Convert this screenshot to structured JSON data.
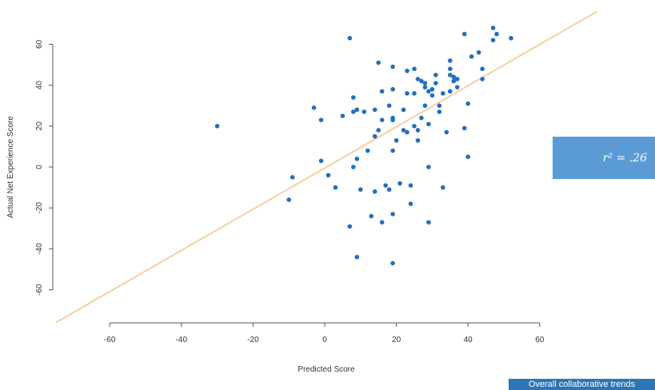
{
  "chart_data": {
    "type": "scatter",
    "title": "",
    "xlabel": "Predicted Score",
    "ylabel": "Actual Net Experience Score",
    "xlim": [
      -60,
      60
    ],
    "ylim": [
      -60,
      60
    ],
    "x_ticks": [
      "-60",
      "-40",
      "-20",
      "0",
      "20",
      "40",
      "60"
    ],
    "y_ticks": [
      "-60",
      "-40",
      "-20",
      "0",
      "20",
      "40",
      "60"
    ],
    "grid": false,
    "point_color": "#1f6fbf",
    "trend_color": "#f5cfa0",
    "trend_line": [
      [
        -75,
        -76
      ],
      [
        76,
        76
      ]
    ],
    "points": [
      [
        -30,
        20
      ],
      [
        -10,
        -16
      ],
      [
        -9,
        -5
      ],
      [
        -3,
        29
      ],
      [
        -1,
        23
      ],
      [
        -1,
        3
      ],
      [
        1,
        -4
      ],
      [
        3,
        -10
      ],
      [
        5,
        25
      ],
      [
        7,
        63
      ],
      [
        7,
        -29
      ],
      [
        8,
        27
      ],
      [
        8,
        34
      ],
      [
        8,
        0
      ],
      [
        9,
        4
      ],
      [
        9,
        28
      ],
      [
        9,
        -44
      ],
      [
        10,
        -11
      ],
      [
        11,
        27
      ],
      [
        12,
        8
      ],
      [
        13,
        -24
      ],
      [
        14,
        15
      ],
      [
        14,
        28
      ],
      [
        14,
        -12
      ],
      [
        15,
        18
      ],
      [
        15,
        51
      ],
      [
        16,
        23
      ],
      [
        16,
        37
      ],
      [
        16,
        -27
      ],
      [
        17,
        -9
      ],
      [
        18,
        -11
      ],
      [
        18,
        30
      ],
      [
        19,
        8
      ],
      [
        19,
        23
      ],
      [
        19,
        24
      ],
      [
        19,
        38
      ],
      [
        19,
        49
      ],
      [
        19,
        -23
      ],
      [
        19,
        -47
      ],
      [
        20,
        13
      ],
      [
        21,
        -8
      ],
      [
        22,
        18
      ],
      [
        22,
        28
      ],
      [
        23,
        17
      ],
      [
        23,
        36
      ],
      [
        23,
        47
      ],
      [
        24,
        -9
      ],
      [
        24,
        -18
      ],
      [
        25,
        20
      ],
      [
        25,
        36
      ],
      [
        25,
        48
      ],
      [
        26,
        13
      ],
      [
        26,
        18
      ],
      [
        26,
        43
      ],
      [
        27,
        24
      ],
      [
        27,
        42
      ],
      [
        28,
        39
      ],
      [
        28,
        41
      ],
      [
        28,
        30
      ],
      [
        29,
        21
      ],
      [
        29,
        37
      ],
      [
        29,
        0
      ],
      [
        29,
        -27
      ],
      [
        30,
        35
      ],
      [
        30,
        38
      ],
      [
        31,
        41
      ],
      [
        31,
        45
      ],
      [
        32,
        27
      ],
      [
        32,
        30
      ],
      [
        33,
        36
      ],
      [
        33,
        -10
      ],
      [
        34,
        17
      ],
      [
        35,
        37
      ],
      [
        35,
        45
      ],
      [
        35,
        48
      ],
      [
        35,
        52
      ],
      [
        36,
        44
      ],
      [
        36,
        42
      ],
      [
        37,
        39
      ],
      [
        37,
        43
      ],
      [
        39,
        19
      ],
      [
        39,
        65
      ],
      [
        40,
        5
      ],
      [
        40,
        31
      ],
      [
        41,
        54
      ],
      [
        43,
        56
      ],
      [
        44,
        48
      ],
      [
        44,
        43
      ],
      [
        47,
        68
      ],
      [
        47,
        62
      ],
      [
        48,
        65
      ],
      [
        52,
        63
      ]
    ]
  },
  "annotation": {
    "r2_label": "r² = .26"
  },
  "footer": {
    "caption": "Overall collaborative trends"
  }
}
